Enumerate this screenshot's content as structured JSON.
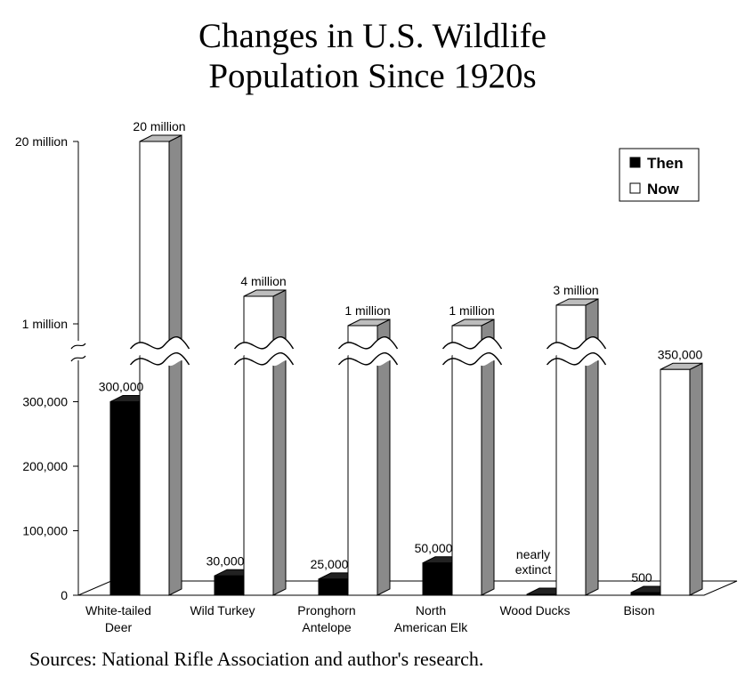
{
  "chart_data": {
    "type": "bar",
    "title": [
      "Changes in U.S. Wildlife",
      "Population Since 1920s"
    ],
    "categories": [
      [
        "White-tailed",
        "Deer"
      ],
      [
        "Wild Turkey"
      ],
      [
        "Pronghorn",
        "Antelope"
      ],
      [
        "North",
        "American Elk"
      ],
      [
        "Wood Ducks"
      ],
      [
        "Bison"
      ]
    ],
    "series": [
      {
        "name": "Then",
        "color": "#000000",
        "values": [
          300000,
          30000,
          25000,
          50000,
          0,
          500
        ],
        "labels": [
          "300,000",
          "30,000",
          "25,000",
          "50,000",
          "nearly extinct",
          "500"
        ]
      },
      {
        "name": "Now",
        "color": "#ffffff",
        "values": [
          20000000,
          4000000,
          1000000,
          1000000,
          3000000,
          350000
        ],
        "labels": [
          "20 million",
          "4 million",
          "1 million",
          "1 million",
          "3 million",
          "350,000"
        ]
      }
    ],
    "y_ticks": [
      "0",
      "100,000",
      "200,000",
      "300,000",
      "1 million",
      "20 million"
    ],
    "y_scale": "broken axis: linear 0–350,000, break, then 1 million and 20 million",
    "legend": {
      "position": "top-right",
      "entries": [
        "Then",
        "Now"
      ]
    },
    "grid": false
  },
  "source": "Sources: National Rifle Association and author's research."
}
